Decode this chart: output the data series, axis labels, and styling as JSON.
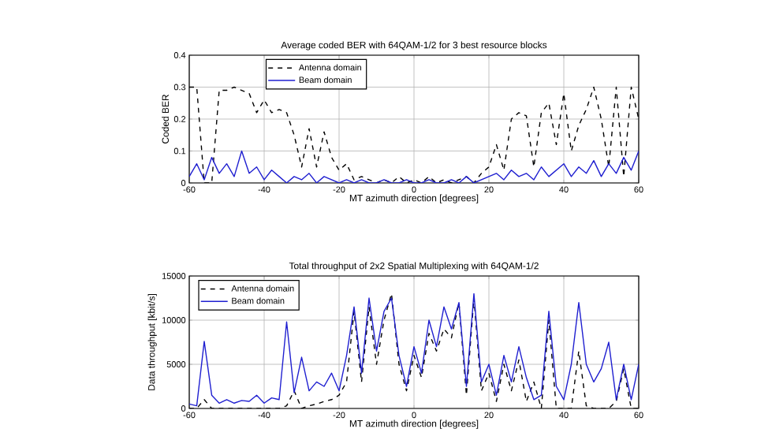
{
  "chart_data": [
    {
      "type": "line",
      "title": "Average coded BER with 64QAM-1/2 for 3 best resource blocks",
      "xlabel": "MT azimuth direction [degrees]",
      "ylabel": "Coded BER",
      "x": [
        -60,
        -58,
        -56,
        -54,
        -52,
        -50,
        -48,
        -46,
        -44,
        -42,
        -40,
        -38,
        -36,
        -34,
        -32,
        -30,
        -28,
        -26,
        -24,
        -22,
        -20,
        -18,
        -16,
        -14,
        -12,
        -10,
        -8,
        -6,
        -4,
        -2,
        0,
        2,
        4,
        6,
        8,
        10,
        12,
        14,
        16,
        18,
        20,
        22,
        24,
        26,
        28,
        30,
        32,
        34,
        36,
        38,
        40,
        42,
        44,
        46,
        48,
        50,
        52,
        54,
        56,
        58,
        60
      ],
      "series": [
        {
          "name": "Antenna domain",
          "color": "#000000",
          "line_style": "dashed",
          "values": [
            0.3,
            0.3,
            0.0,
            0.0,
            0.29,
            0.29,
            0.3,
            0.29,
            0.28,
            0.22,
            0.26,
            0.22,
            0.23,
            0.22,
            0.15,
            0.05,
            0.17,
            0.05,
            0.16,
            0.08,
            0.04,
            0.06,
            0.01,
            0.02,
            0.01,
            0.0,
            0.01,
            0.0,
            0.02,
            0.0,
            0.01,
            0.0,
            0.02,
            0.0,
            0.01,
            0.0,
            0.01,
            0.02,
            0.0,
            0.03,
            0.05,
            0.12,
            0.04,
            0.2,
            0.22,
            0.21,
            0.05,
            0.22,
            0.25,
            0.12,
            0.28,
            0.1,
            0.18,
            0.23,
            0.3,
            0.2,
            0.05,
            0.3,
            0.02,
            0.3,
            0.2
          ]
        },
        {
          "name": "Beam domain",
          "color": "#1f1fd0",
          "line_style": "solid",
          "values": [
            0.02,
            0.06,
            0.01,
            0.08,
            0.03,
            0.06,
            0.02,
            0.1,
            0.03,
            0.05,
            0.01,
            0.04,
            0.02,
            0.0,
            0.02,
            0.01,
            0.03,
            0.0,
            0.02,
            0.01,
            0.0,
            0.01,
            0.0,
            0.01,
            0.0,
            0.0,
            0.01,
            0.0,
            0.0,
            0.01,
            0.0,
            0.0,
            0.01,
            0.0,
            0.0,
            0.01,
            0.0,
            0.02,
            0.0,
            0.01,
            0.02,
            0.03,
            0.01,
            0.04,
            0.02,
            0.03,
            0.01,
            0.05,
            0.02,
            0.04,
            0.06,
            0.02,
            0.05,
            0.03,
            0.07,
            0.02,
            0.06,
            0.03,
            0.08,
            0.04,
            0.1
          ]
        }
      ],
      "xlim": [
        -60,
        60
      ],
      "ylim": [
        0,
        0.4
      ],
      "xticks": [
        -60,
        -40,
        -20,
        0,
        20,
        40,
        60
      ],
      "yticks": [
        0,
        0.1,
        0.2,
        0.3,
        0.4
      ],
      "grid": true,
      "legend": "top left"
    },
    {
      "type": "line",
      "title": "Total throughput of 2x2 Spatial Multiplexing with 64QAM-1/2",
      "xlabel": "MT azimuth direction [degrees]",
      "ylabel": "Data throughput [kbit/s]",
      "x": [
        -60,
        -58,
        -56,
        -54,
        -52,
        -50,
        -48,
        -46,
        -44,
        -42,
        -40,
        -38,
        -36,
        -34,
        -32,
        -30,
        -28,
        -26,
        -24,
        -22,
        -20,
        -18,
        -16,
        -14,
        -12,
        -10,
        -8,
        -6,
        -4,
        -2,
        0,
        2,
        4,
        6,
        8,
        10,
        12,
        14,
        16,
        18,
        20,
        22,
        24,
        26,
        28,
        30,
        32,
        34,
        36,
        38,
        40,
        42,
        44,
        46,
        48,
        50,
        52,
        54,
        56,
        58,
        60
      ],
      "series": [
        {
          "name": "Antenna domain",
          "color": "#000000",
          "line_style": "dashed",
          "values": [
            0,
            0,
            1000,
            0,
            0,
            0,
            0,
            0,
            0,
            0,
            0,
            0,
            0,
            300,
            2000,
            0,
            300,
            500,
            800,
            1000,
            1500,
            3000,
            11000,
            3000,
            11500,
            5000,
            10000,
            13000,
            5000,
            2000,
            6000,
            3500,
            8500,
            6500,
            9000,
            8000,
            12000,
            1500,
            12500,
            2000,
            4000,
            800,
            5000,
            2000,
            5500,
            800,
            3000,
            0,
            10000,
            0,
            0,
            0,
            6500,
            300,
            0,
            0,
            0,
            800,
            4500,
            0,
            0
          ]
        },
        {
          "name": "Beam domain",
          "color": "#1f1fd0",
          "line_style": "solid",
          "values": [
            500,
            300,
            7600,
            1500,
            600,
            1000,
            600,
            900,
            800,
            1500,
            600,
            1200,
            1000,
            9800,
            1800,
            5800,
            2000,
            3000,
            2500,
            4000,
            2000,
            6000,
            11500,
            4000,
            12500,
            6500,
            11000,
            12500,
            6000,
            2500,
            7000,
            4000,
            10000,
            7000,
            11500,
            9000,
            12000,
            2500,
            13000,
            3000,
            5000,
            1500,
            6000,
            3000,
            7000,
            3500,
            1000,
            1500,
            11000,
            2500,
            1000,
            5000,
            12000,
            5000,
            3000,
            4500,
            7500,
            1000,
            5000,
            1000,
            5000
          ]
        }
      ],
      "xlim": [
        -60,
        60
      ],
      "ylim": [
        0,
        15000
      ],
      "xticks": [
        -60,
        -40,
        -20,
        0,
        20,
        40,
        60
      ],
      "yticks": [
        0,
        5000,
        10000,
        15000
      ],
      "grid": true,
      "legend": "top left"
    }
  ]
}
